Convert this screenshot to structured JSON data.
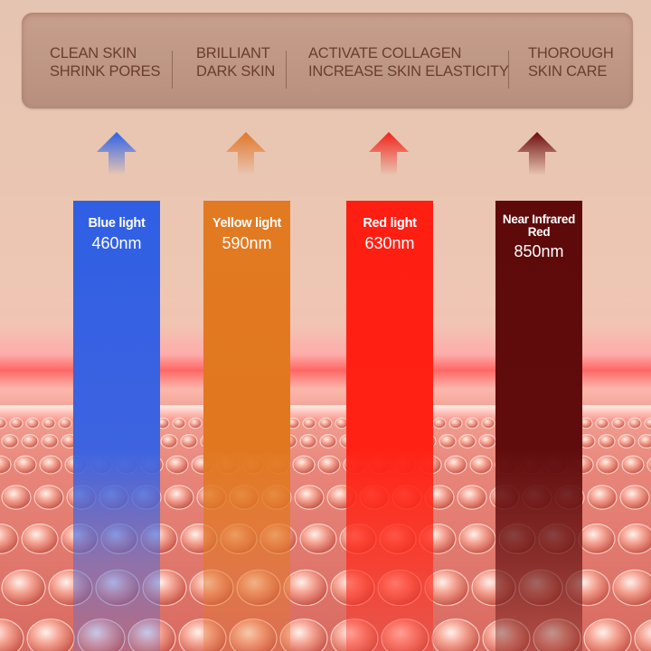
{
  "benefits": [
    {
      "line1": "CLEAN SKIN",
      "line2": "SHRINK PORES"
    },
    {
      "line1": "BRILLIANT",
      "line2": "DARK SKIN"
    },
    {
      "line1": "ACTIVATE COLLAGEN",
      "line2": "INCREASE SKIN ELASTICITY"
    },
    {
      "line1": "THOROUGH",
      "line2": "SKIN CARE"
    }
  ],
  "lights": [
    {
      "name": "Blue light",
      "wavelength": "460nm",
      "color": "#2f5fe4"
    },
    {
      "name": "Yellow light",
      "wavelength": "590nm",
      "color": "#e27a22"
    },
    {
      "name_line1": "Near Infrared",
      "name_line2": "Red",
      "wavelength": "850nm",
      "color": "#5e0a0a"
    },
    {
      "name": "Red light",
      "wavelength": "630nm",
      "color": "#ff1e12"
    }
  ],
  "arrow_colors": [
    "#3a6be6",
    "#e37a2a",
    "#ee2a22",
    "#7a1010"
  ]
}
